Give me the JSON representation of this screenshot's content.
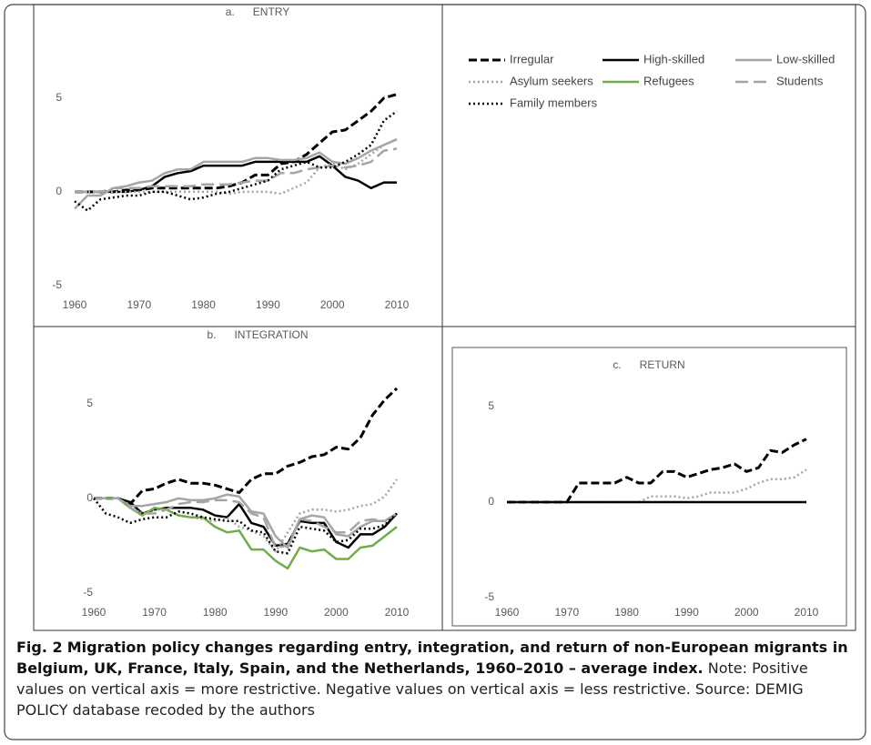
{
  "chart_data": [
    {
      "type": "line",
      "title": "a.      ENTRY",
      "x": [
        1960,
        1962,
        1964,
        1966,
        1968,
        1970,
        1972,
        1974,
        1976,
        1978,
        1980,
        1982,
        1984,
        1986,
        1988,
        1990,
        1992,
        1994,
        1996,
        1998,
        2000,
        2002,
        2004,
        2006,
        2008,
        2010
      ],
      "xlim": [
        1960,
        2010
      ],
      "xticks": [
        1960,
        1970,
        1980,
        1990,
        2000,
        2010
      ],
      "ylim": [
        -5,
        8
      ],
      "yticks": [
        -5,
        0,
        5
      ],
      "series": [
        {
          "name": "Irregular",
          "values": [
            0,
            0,
            0,
            0,
            0.1,
            0.1,
            0.2,
            0.2,
            0.2,
            0.2,
            0.2,
            0.2,
            0.3,
            0.5,
            0.9,
            0.9,
            1.5,
            1.6,
            2.0,
            2.6,
            3.2,
            3.3,
            3.8,
            4.3,
            5.0,
            5.2
          ]
        },
        {
          "name": "High-skilled",
          "values": [
            0,
            0,
            0,
            0,
            0,
            0.1,
            0.3,
            0.8,
            1.0,
            1.1,
            1.4,
            1.4,
            1.4,
            1.4,
            1.6,
            1.6,
            1.6,
            1.6,
            1.6,
            1.9,
            1.4,
            0.8,
            0.6,
            0.2,
            0.5,
            0.5
          ]
        },
        {
          "name": "Low-skilled",
          "values": [
            -0.9,
            -0.2,
            -0.2,
            0.2,
            0.3,
            0.5,
            0.6,
            1.0,
            1.2,
            1.2,
            1.6,
            1.6,
            1.6,
            1.6,
            1.8,
            1.8,
            1.7,
            1.7,
            1.8,
            2.1,
            1.6,
            1.5,
            1.8,
            2.2,
            2.5,
            2.8
          ]
        },
        {
          "name": "Asylum seekers",
          "values": [
            0,
            0,
            0,
            0,
            0,
            0,
            0,
            0,
            0,
            0,
            0,
            0,
            -0.1,
            0,
            0,
            0,
            -0.1,
            0.2,
            0.5,
            1.3,
            1.5,
            1.2,
            1.5,
            2.0,
            2.5,
            2.8
          ]
        },
        {
          "name": "Students",
          "values": [
            0,
            0,
            0,
            0.2,
            0.2,
            0.2,
            0.3,
            0.3,
            0.3,
            0.3,
            0.4,
            0.4,
            0.4,
            0.5,
            0.6,
            0.6,
            1.0,
            1.0,
            1.2,
            1.3,
            1.4,
            1.3,
            1.4,
            1.6,
            2.2,
            2.3
          ]
        },
        {
          "name": "Family members",
          "values": [
            -0.5,
            -1.0,
            -0.4,
            -0.3,
            -0.2,
            -0.2,
            0,
            0,
            -0.2,
            -0.4,
            -0.3,
            -0.1,
            0,
            0.2,
            0.4,
            0.6,
            1.2,
            1.4,
            1.6,
            1.3,
            1.3,
            1.6,
            2.0,
            2.5,
            3.8,
            4.3
          ]
        }
      ]
    },
    {
      "type": "line",
      "title": "b.      INTEGRATION",
      "x": [
        1960,
        1962,
        1964,
        1966,
        1968,
        1970,
        1972,
        1974,
        1976,
        1978,
        1980,
        1982,
        1984,
        1986,
        1988,
        1990,
        1992,
        1994,
        1996,
        1998,
        2000,
        2002,
        2004,
        2006,
        2008,
        2010
      ],
      "xlim": [
        1960,
        2010
      ],
      "xticks": [
        1960,
        1970,
        1980,
        1990,
        2000,
        2010
      ],
      "ylim": [
        -5,
        7
      ],
      "yticks": [
        -5,
        0,
        5
      ],
      "series": [
        {
          "name": "Irregular",
          "color": "#000000",
          "line_style": "dashed",
          "values": [
            0,
            0,
            0,
            -0.3,
            0.4,
            0.5,
            0.8,
            1.0,
            0.8,
            0.8,
            0.7,
            0.5,
            0.3,
            1.0,
            1.3,
            1.3,
            1.7,
            1.9,
            2.2,
            2.3,
            2.7,
            2.6,
            3.2,
            4.4,
            5.2,
            5.8
          ]
        },
        {
          "name": "High-skilled",
          "color": "#000000",
          "line_style": "solid",
          "values": [
            0,
            0,
            0,
            -0.2,
            -0.8,
            -0.6,
            -0.5,
            -0.5,
            -0.5,
            -0.6,
            -0.9,
            -1.0,
            -0.3,
            -1.3,
            -1.5,
            -2.5,
            -2.4,
            -1.2,
            -1.3,
            -1.3,
            -2.3,
            -2.6,
            -1.9,
            -1.9,
            -1.5,
            -0.8
          ]
        },
        {
          "name": "Low-skilled",
          "color": "#a5a5a5",
          "line_style": "solid",
          "values": [
            0,
            0,
            0,
            -0.4,
            -0.4,
            -0.3,
            -0.2,
            0,
            -0.1,
            -0.1,
            0,
            0.2,
            0.1,
            -0.7,
            -0.8,
            -2.0,
            -2.6,
            -1.1,
            -0.9,
            -1.0,
            -1.9,
            -2.0,
            -1.5,
            -1.2,
            -1.2,
            -0.8
          ]
        },
        {
          "name": "Asylum seekers",
          "color": "#a5a5a5",
          "line_style": "dotted",
          "values": [
            0,
            0,
            0,
            -0.5,
            -0.8,
            -0.6,
            -0.6,
            -0.9,
            -1.0,
            -1.1,
            -1.2,
            -1.0,
            -1.5,
            -1.7,
            -2.0,
            -2.8,
            -1.8,
            -0.8,
            -0.6,
            -0.6,
            -0.7,
            -0.6,
            -0.4,
            -0.3,
            0.1,
            1.0
          ]
        },
        {
          "name": "Refugees",
          "color": "#70ad47",
          "line_style": "solid",
          "values": [
            0,
            0,
            0,
            -0.5,
            -0.9,
            -0.5,
            -0.6,
            -0.9,
            -1.0,
            -1.0,
            -1.5,
            -1.8,
            -1.7,
            -2.7,
            -2.7,
            -3.3,
            -3.7,
            -2.6,
            -2.8,
            -2.7,
            -3.2,
            -3.2,
            -2.6,
            -2.5,
            -2.0,
            -1.5
          ]
        },
        {
          "name": "Students",
          "color": "#a5a5a5",
          "line_style": "long-dash",
          "values": [
            0,
            0,
            0,
            -0.5,
            -0.8,
            -0.8,
            -0.6,
            -0.3,
            -0.2,
            -0.2,
            -0.1,
            -0.1,
            -0.2,
            -0.8,
            -1.0,
            -2.6,
            -2.5,
            -1.1,
            -1.2,
            -1.5,
            -1.8,
            -1.8,
            -1.2,
            -1.1,
            -1.2,
            -0.8
          ]
        },
        {
          "name": "Family members",
          "color": "#000000",
          "line_style": "dotted",
          "values": [
            0,
            -0.8,
            -1.0,
            -1.3,
            -1.1,
            -1.0,
            -1.0,
            -0.7,
            -0.8,
            -1.0,
            -1.1,
            -1.2,
            -1.2,
            -1.7,
            -1.8,
            -2.8,
            -2.9,
            -1.5,
            -1.6,
            -1.7,
            -2.3,
            -2.2,
            -1.6,
            -1.6,
            -1.4,
            -0.8
          ]
        }
      ]
    },
    {
      "type": "line",
      "title": "c.      RETURN",
      "x": [
        1960,
        1962,
        1964,
        1966,
        1968,
        1970,
        1972,
        1974,
        1976,
        1978,
        1980,
        1982,
        1984,
        1986,
        1988,
        1990,
        1992,
        1994,
        1996,
        1998,
        2000,
        2002,
        2004,
        2006,
        2008,
        2010
      ],
      "xlim": [
        1960,
        2010
      ],
      "xticks": [
        1960,
        1970,
        1980,
        1990,
        2000,
        2010
      ],
      "ylim": [
        -5,
        7
      ],
      "yticks": [
        -5,
        0,
        5
      ],
      "series": [
        {
          "name": "Irregular",
          "values": [
            0,
            0,
            0,
            0,
            0,
            0,
            1.0,
            1.0,
            1.0,
            1.0,
            1.3,
            1.0,
            1.0,
            1.6,
            1.6,
            1.3,
            1.5,
            1.7,
            1.8,
            2.0,
            1.6,
            1.8,
            2.7,
            2.6,
            3.0,
            3.3
          ]
        },
        {
          "name": "Asylum seekers",
          "values": [
            0,
            0,
            0,
            0,
            0,
            0,
            0,
            0,
            0,
            0,
            0,
            0,
            0.3,
            0.3,
            0.3,
            0.2,
            0.3,
            0.5,
            0.5,
            0.5,
            0.7,
            1.0,
            1.2,
            1.2,
            1.3,
            1.7
          ]
        },
        {
          "name": "High-skilled",
          "values": [
            0,
            0,
            0,
            0,
            0,
            0,
            0,
            0,
            0,
            0,
            0,
            0,
            0,
            0,
            0,
            0,
            0,
            0,
            0,
            0,
            0,
            0,
            0,
            0,
            0,
            0
          ]
        }
      ]
    }
  ],
  "caption": {
    "label": "Fig. 2",
    "title": "Migration policy changes regarding entry, integration, and return of non-European migrants in Belgium, UK, France, Italy, Spain, and the Netherlands, 1960–2010 – average index.",
    "note": "Note: Positive values on vertical axis = more restrictive. Negative values on vertical axis = less restrictive. Source: DEMIG POLICY database recoded by the authors"
  }
}
